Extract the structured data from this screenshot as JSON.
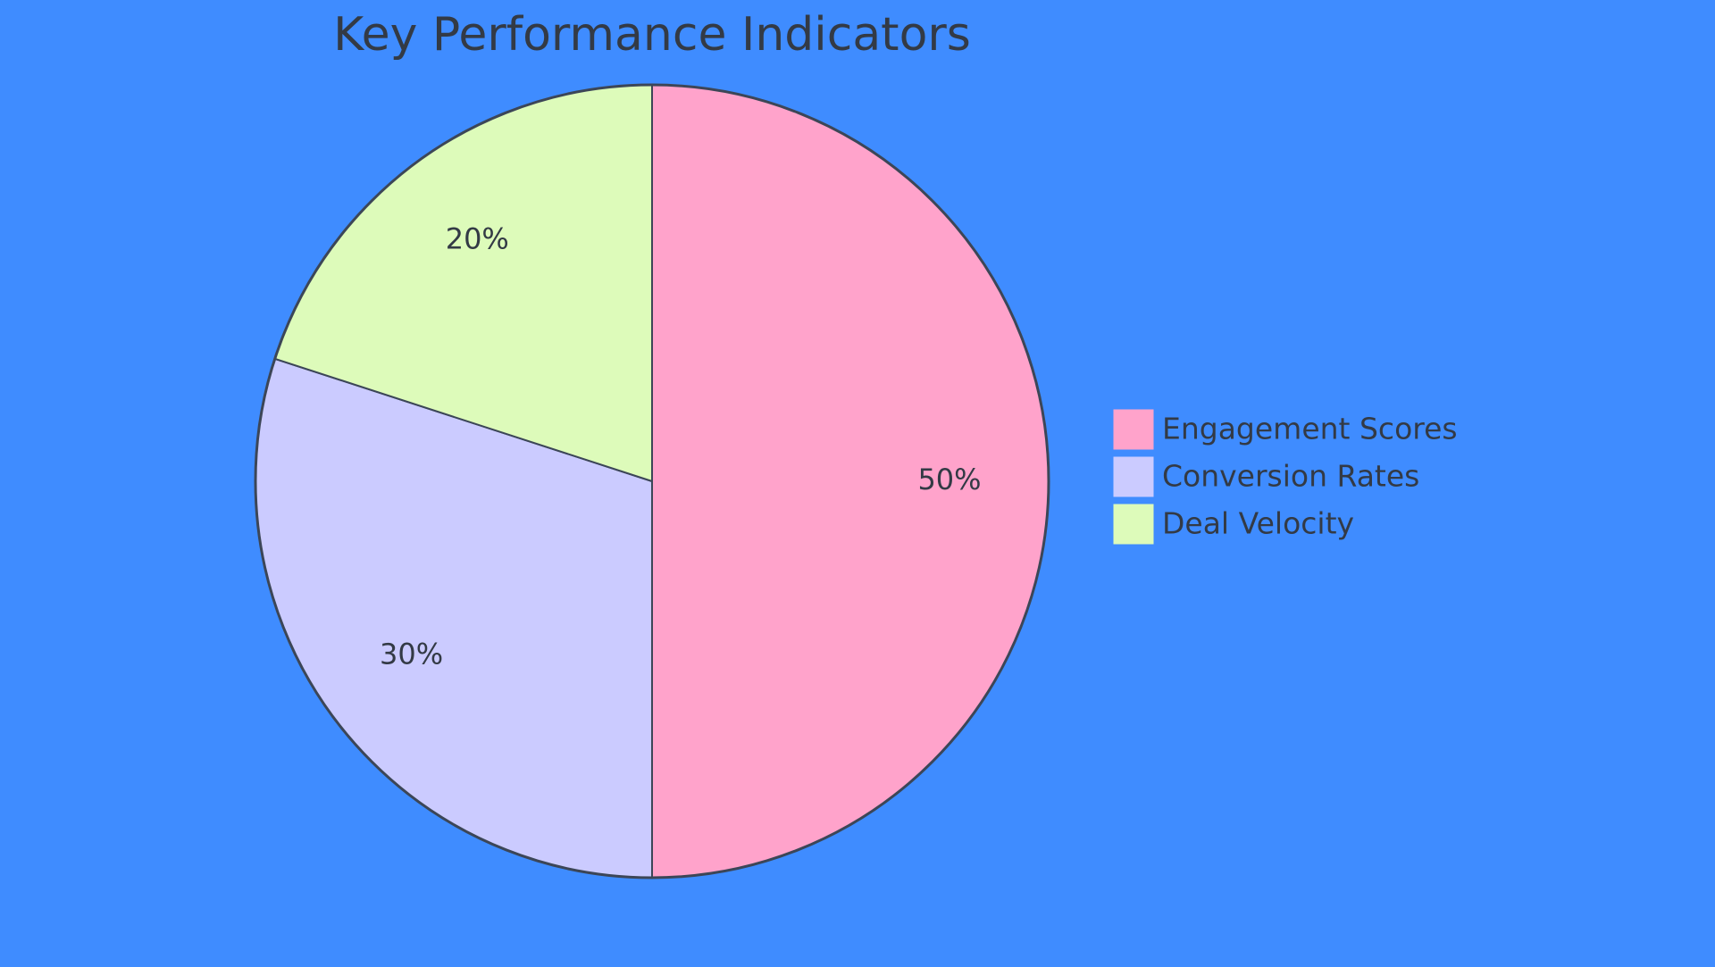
{
  "chart_data": {
    "type": "pie",
    "title": "Key Performance Indicators",
    "categories": [
      "Engagement Scores",
      "Conversion Rates",
      "Deal Velocity"
    ],
    "values": [
      50,
      30,
      20
    ],
    "value_labels": [
      "50%",
      "30%",
      "20%"
    ],
    "colors": [
      "#ffa3cb",
      "#cbcbff",
      "#ddfbba"
    ],
    "background": "#3f8cff",
    "legend": "right"
  }
}
